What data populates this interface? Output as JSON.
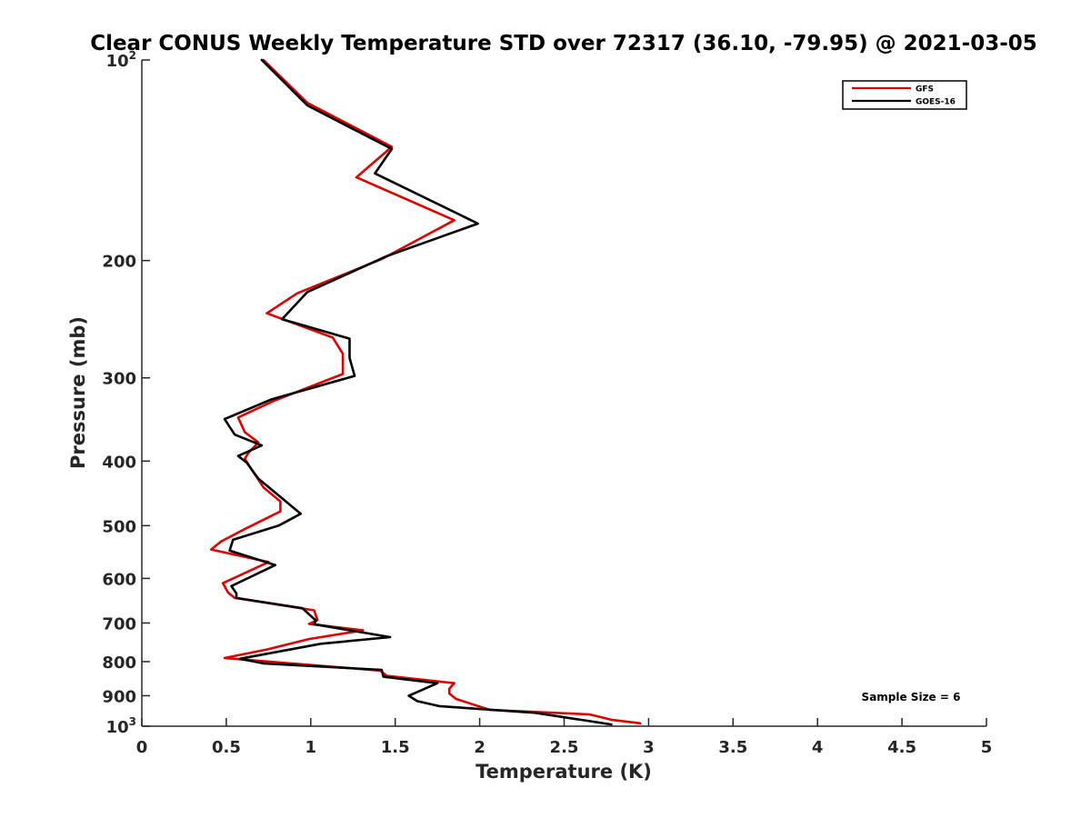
{
  "chart_data": {
    "type": "line",
    "title": "Clear CONUS Weekly Temperature STD over 72317 (36.10, -79.95) @ 2021-03-05",
    "xlabel": "Temperature (K)",
    "ylabel": "Pressure (mb)",
    "xlim": [
      0,
      5
    ],
    "ylim": [
      100,
      1000
    ],
    "y_scale": "log",
    "y_reversed": true,
    "grid": false,
    "legend_position": "top-right",
    "annotation": "Sample Size = 6",
    "x_ticks": [
      {
        "value": 0,
        "label": "0"
      },
      {
        "value": 0.5,
        "label": "0.5"
      },
      {
        "value": 1,
        "label": "1"
      },
      {
        "value": 1.5,
        "label": "1.5"
      },
      {
        "value": 2,
        "label": "2"
      },
      {
        "value": 2.5,
        "label": "2.5"
      },
      {
        "value": 3,
        "label": "3"
      },
      {
        "value": 3.5,
        "label": "3.5"
      },
      {
        "value": 4,
        "label": "4"
      },
      {
        "value": 4.5,
        "label": "4.5"
      },
      {
        "value": 5,
        "label": "5"
      }
    ],
    "y_ticks": [
      {
        "value": 100,
        "base": "10",
        "exp": "2"
      },
      {
        "value": 200,
        "label": "200"
      },
      {
        "value": 300,
        "label": "300"
      },
      {
        "value": 400,
        "label": "400"
      },
      {
        "value": 500,
        "label": "500"
      },
      {
        "value": 600,
        "label": "600"
      },
      {
        "value": 700,
        "label": "700"
      },
      {
        "value": 800,
        "label": "800"
      },
      {
        "value": 900,
        "label": "900"
      },
      {
        "value": 1000,
        "base": "10",
        "exp": "3"
      }
    ],
    "series": [
      {
        "name": "GFS",
        "color": "#e00000",
        "points": [
          [
            0.72,
            100
          ],
          [
            0.98,
            116
          ],
          [
            1.48,
            135
          ],
          [
            1.27,
            150
          ],
          [
            1.85,
            174
          ],
          [
            1.42,
            199
          ],
          [
            0.92,
            224
          ],
          [
            0.74,
            240
          ],
          [
            1.13,
            261
          ],
          [
            1.19,
            276
          ],
          [
            1.19,
            296
          ],
          [
            0.78,
            325
          ],
          [
            0.57,
            344
          ],
          [
            0.61,
            362
          ],
          [
            0.69,
            375
          ],
          [
            0.63,
            389
          ],
          [
            0.61,
            397
          ],
          [
            0.65,
            412
          ],
          [
            0.72,
            438
          ],
          [
            0.82,
            460
          ],
          [
            0.82,
            476
          ],
          [
            0.61,
            506
          ],
          [
            0.47,
            528
          ],
          [
            0.41,
            543
          ],
          [
            0.75,
            567
          ],
          [
            0.48,
            610
          ],
          [
            0.51,
            630
          ],
          [
            0.55,
            642
          ],
          [
            1.02,
            670
          ],
          [
            1.04,
            693
          ],
          [
            0.99,
            702
          ],
          [
            1.31,
            718
          ],
          [
            0.99,
            740
          ],
          [
            0.74,
            767
          ],
          [
            0.49,
            790
          ],
          [
            1.41,
            825
          ],
          [
            1.45,
            840
          ],
          [
            1.85,
            862
          ],
          [
            1.82,
            878
          ],
          [
            1.82,
            893
          ],
          [
            1.86,
            910
          ],
          [
            2.06,
            945
          ],
          [
            2.65,
            960
          ],
          [
            2.78,
            978
          ],
          [
            2.95,
            990
          ]
        ]
      },
      {
        "name": "GOES-16",
        "color": "#000000",
        "points": [
          [
            0.71,
            100
          ],
          [
            0.98,
            117
          ],
          [
            1.48,
            136
          ],
          [
            1.38,
            148
          ],
          [
            1.99,
            176
          ],
          [
            1.45,
            197
          ],
          [
            0.98,
            223
          ],
          [
            0.83,
            245
          ],
          [
            1.23,
            262
          ],
          [
            1.23,
            280
          ],
          [
            1.26,
            298
          ],
          [
            0.77,
            323
          ],
          [
            0.49,
            346
          ],
          [
            0.55,
            365
          ],
          [
            0.71,
            379
          ],
          [
            0.57,
            393
          ],
          [
            0.62,
            402
          ],
          [
            0.69,
            425
          ],
          [
            0.84,
            457
          ],
          [
            0.94,
            480
          ],
          [
            0.81,
            500
          ],
          [
            0.54,
            525
          ],
          [
            0.52,
            545
          ],
          [
            0.79,
            573
          ],
          [
            0.53,
            616
          ],
          [
            0.56,
            632
          ],
          [
            0.56,
            642
          ],
          [
            0.95,
            665
          ],
          [
            1.03,
            694
          ],
          [
            1.02,
            703
          ],
          [
            1.47,
            735
          ],
          [
            1.06,
            752
          ],
          [
            0.58,
            792
          ],
          [
            0.72,
            805
          ],
          [
            1.42,
            823
          ],
          [
            1.43,
            843
          ],
          [
            1.75,
            862
          ],
          [
            1.58,
            900
          ],
          [
            1.63,
            917
          ],
          [
            1.76,
            933
          ],
          [
            2.33,
            955
          ],
          [
            2.78,
            994
          ]
        ]
      }
    ]
  }
}
